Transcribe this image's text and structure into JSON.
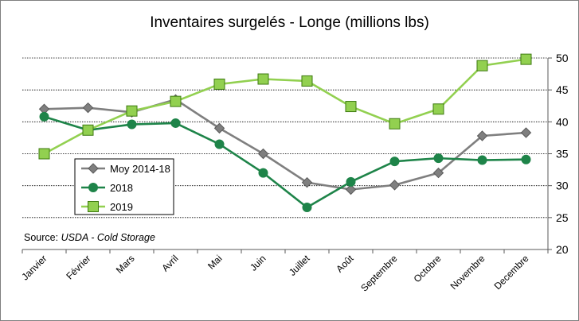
{
  "chart_data": {
    "type": "line",
    "title": "Inventaires surgelés - Longe (millions lbs)",
    "categories": [
      "Janvier",
      "Février",
      "Mars",
      "Avril",
      "Mai",
      "Juin",
      "Juillet",
      "Août",
      "Septembre",
      "Octobre",
      "Novembre",
      "Decembre"
    ],
    "ylim": [
      20,
      50
    ],
    "yticks": [
      20,
      25,
      30,
      35,
      40,
      45,
      50
    ],
    "y_axis_side": "right",
    "grid": true,
    "legend_position": "inside-left",
    "series": [
      {
        "name": "Moy 2014-18",
        "color": "#7f7f7f",
        "marker": "diamond",
        "values": [
          42.0,
          42.2,
          41.5,
          43.5,
          39.0,
          35.0,
          30.5,
          29.4,
          30.1,
          32.0,
          37.8,
          38.3
        ]
      },
      {
        "name": "2018",
        "color": "#1e8449",
        "marker": "circle",
        "values": [
          40.8,
          38.7,
          39.6,
          39.8,
          36.5,
          32.0,
          26.6,
          30.6,
          33.8,
          34.3,
          34.0,
          34.1
        ]
      },
      {
        "name": "2019",
        "color": "#92d050",
        "marker": "square",
        "values": [
          35.0,
          38.7,
          41.7,
          43.2,
          45.9,
          46.7,
          46.4,
          42.4,
          39.7,
          42.0,
          48.8,
          49.8
        ]
      }
    ],
    "annotation": {
      "prefix": "Source: ",
      "italic": "USDA - Cold Storage"
    }
  }
}
